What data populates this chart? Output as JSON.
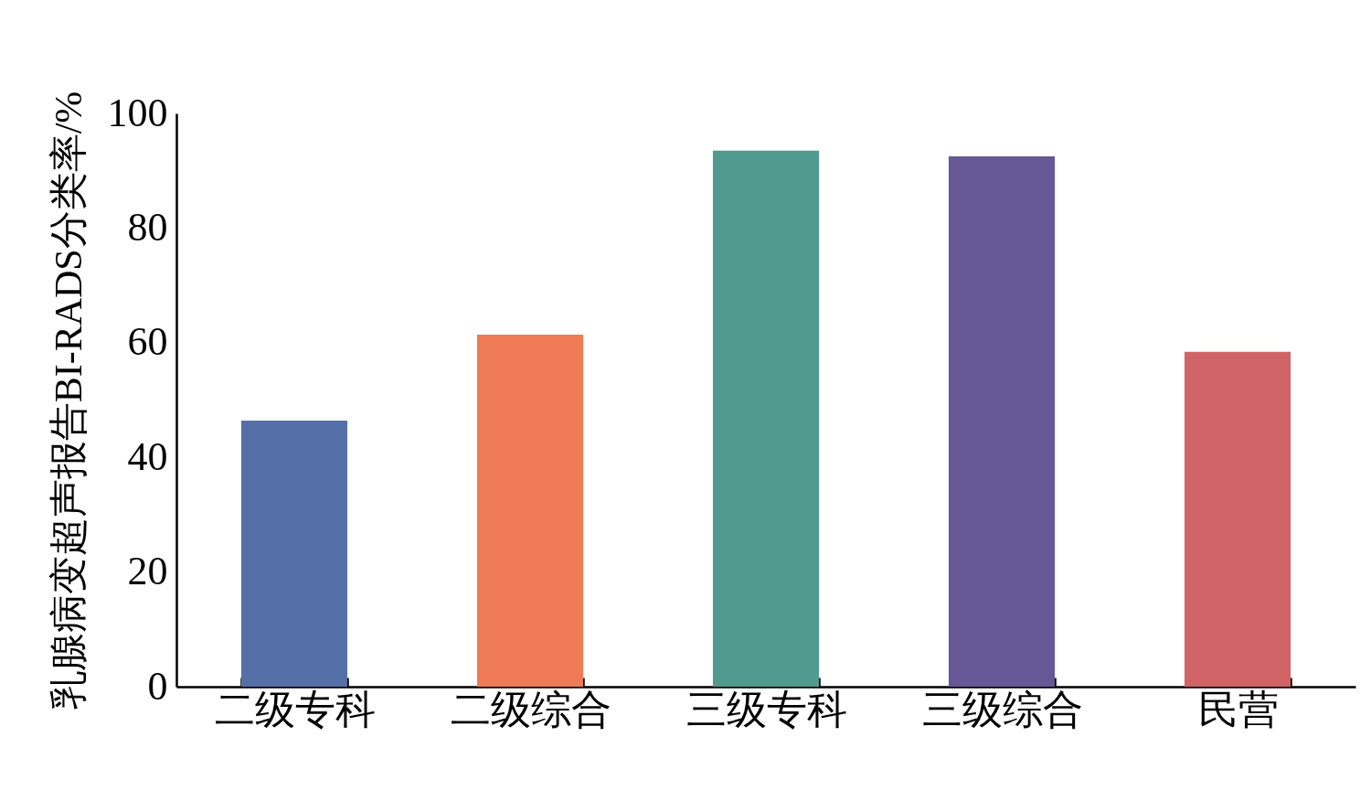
{
  "chart_data": {
    "type": "bar",
    "ylabel": "乳腺病变超声报告BI-RADS分类率/%",
    "categories": [
      "二级专科",
      "二级综合",
      "三级专科",
      "三级综合",
      "民营"
    ],
    "values": [
      46.4,
      61.4,
      93.5,
      92.5,
      58.4
    ],
    "colors": [
      "#5470a6",
      "#ee7a56",
      "#519a8f",
      "#665796",
      "#cf6366"
    ],
    "ylim": [
      0,
      100
    ],
    "yticks": [
      0,
      20,
      40,
      60,
      80,
      100
    ],
    "grid": false
  }
}
